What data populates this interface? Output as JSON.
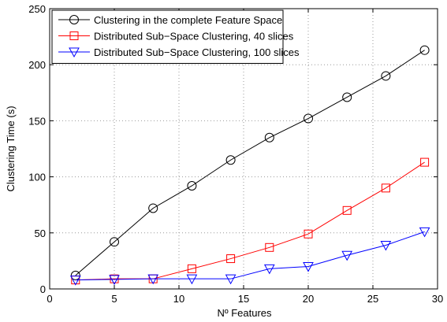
{
  "chart_data": {
    "type": "line",
    "xlabel": "Nº Features",
    "ylabel": "Clustering Time (s)",
    "xlim": [
      0,
      30
    ],
    "xticks": [
      0,
      5,
      10,
      15,
      20,
      25,
      30
    ],
    "ylim": [
      0,
      250
    ],
    "yticks": [
      0,
      50,
      100,
      150,
      200,
      250
    ],
    "grid": true,
    "legend": "upper left",
    "x": [
      2,
      5,
      8,
      11,
      14,
      17,
      20,
      23,
      26,
      29
    ],
    "series": [
      {
        "name": "Clustering in the complete Feature Space",
        "color": "#000000",
        "marker": "circle",
        "values": [
          12,
          42,
          72,
          92,
          115,
          135,
          152,
          171,
          190,
          213
        ]
      },
      {
        "name": "Distributed Sub−Space Clustering, 40 slices",
        "color": "#ff0000",
        "marker": "square",
        "values": [
          8,
          9,
          9,
          18,
          27,
          37,
          49,
          70,
          90,
          113
        ]
      },
      {
        "name": "Distributed Sub−Space Clustering, 100 slices",
        "color": "#0000ff",
        "marker": "triangle-down",
        "values": [
          8,
          8.5,
          9,
          9,
          9,
          18,
          20,
          30,
          39,
          51
        ]
      }
    ]
  }
}
